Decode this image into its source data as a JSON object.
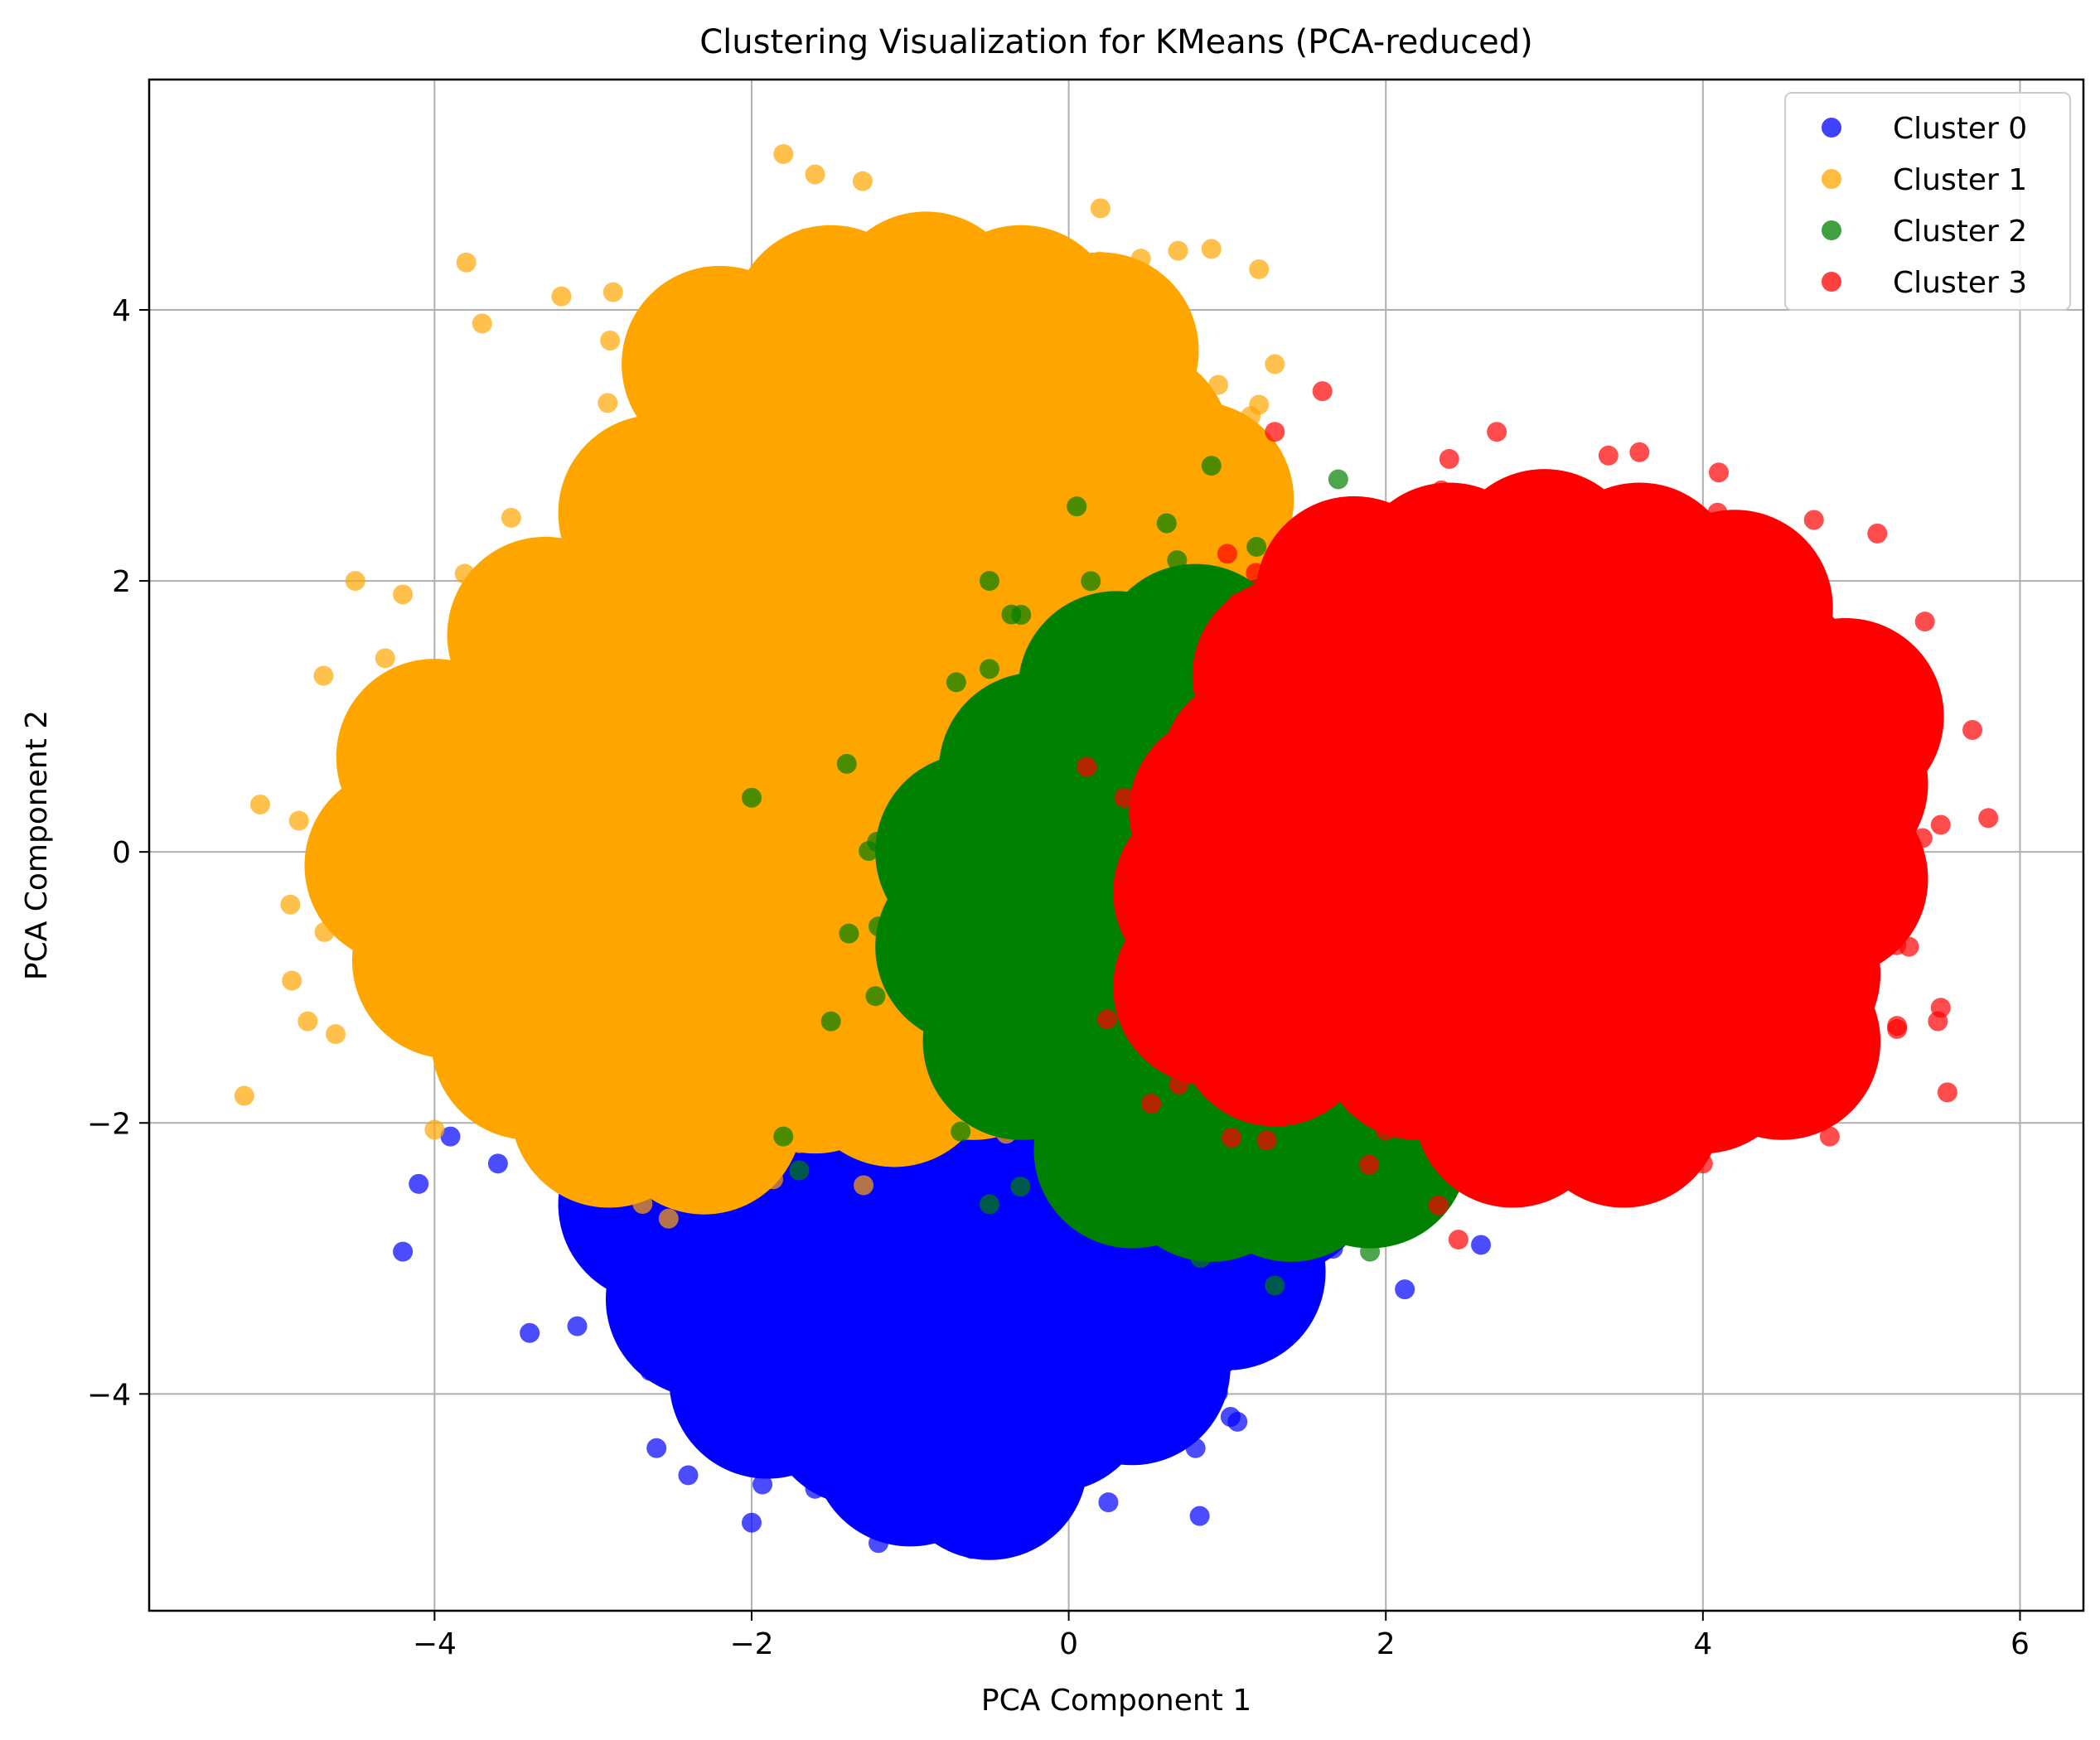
{
  "chart_data": {
    "type": "scatter",
    "title": "Clustering Visualization for KMeans (PCA-reduced)",
    "xlabel": "PCA Component 1",
    "ylabel": "PCA Component 2",
    "xlim": [
      -5.8,
      6.4
    ],
    "ylim": [
      -5.6,
      5.7
    ],
    "xticks": [
      -4,
      -2,
      0,
      2,
      4,
      6
    ],
    "yticks": [
      -4,
      -2,
      0,
      2,
      4
    ],
    "xtick_labels": [
      "−4",
      "−2",
      "0",
      "2",
      "4",
      "6"
    ],
    "ytick_labels": [
      "−4",
      "−2",
      "0",
      "2",
      "4"
    ],
    "grid": true,
    "legend_position": "top-right",
    "series": [
      {
        "name": "Cluster 0",
        "color": "#0000ff",
        "core_points": [
          [
            -2.2,
            -2.0
          ],
          [
            -1.6,
            -2.2
          ],
          [
            -1.0,
            -2.3
          ],
          [
            -0.4,
            -2.2
          ],
          [
            0.2,
            -2.1
          ],
          [
            0.7,
            -2.0
          ],
          [
            -2.6,
            -2.6
          ],
          [
            -2.0,
            -2.8
          ],
          [
            -1.4,
            -2.9
          ],
          [
            -0.8,
            -2.9
          ],
          [
            -0.2,
            -2.9
          ],
          [
            0.4,
            -2.8
          ],
          [
            0.9,
            -2.6
          ],
          [
            1.3,
            -2.4
          ],
          [
            -2.3,
            -3.3
          ],
          [
            -1.7,
            -3.4
          ],
          [
            -1.1,
            -3.5
          ],
          [
            -0.5,
            -3.5
          ],
          [
            0.1,
            -3.4
          ],
          [
            0.6,
            -3.3
          ],
          [
            1.0,
            -3.1
          ],
          [
            -1.9,
            -3.9
          ],
          [
            -1.3,
            -4.1
          ],
          [
            -0.7,
            -4.1
          ],
          [
            -0.1,
            -4.0
          ],
          [
            0.4,
            -3.8
          ],
          [
            -1.0,
            -4.4
          ],
          [
            -0.5,
            -4.5
          ]
        ],
        "outliers": [
          [
            -4.2,
            -2.95
          ],
          [
            -4.1,
            -2.45
          ],
          [
            -3.4,
            -3.55
          ],
          [
            -3.1,
            -3.5
          ],
          [
            -2.4,
            -4.6
          ],
          [
            -1.2,
            -5.1
          ],
          [
            -0.3,
            -5.0
          ],
          [
            -2.0,
            -4.95
          ],
          [
            0.25,
            -4.8
          ],
          [
            2.6,
            -2.9
          ],
          [
            1.2,
            -3.4
          ],
          [
            0.8,
            -4.4
          ],
          [
            -1.6,
            -4.7
          ],
          [
            -2.6,
            -4.4
          ],
          [
            -3.6,
            -2.3
          ],
          [
            -3.9,
            -2.1
          ]
        ]
      },
      {
        "name": "Cluster 1",
        "color": "#ffa500",
        "core_points": [
          [
            -1.5,
            3.9
          ],
          [
            -0.9,
            4.0
          ],
          [
            -0.3,
            3.9
          ],
          [
            0.2,
            3.7
          ],
          [
            -2.2,
            3.6
          ],
          [
            -2.0,
            3.0
          ],
          [
            -1.4,
            3.2
          ],
          [
            -0.8,
            3.3
          ],
          [
            -0.2,
            3.2
          ],
          [
            0.4,
            3.0
          ],
          [
            0.8,
            2.6
          ],
          [
            -2.6,
            2.5
          ],
          [
            -2.0,
            2.4
          ],
          [
            -1.4,
            2.5
          ],
          [
            -0.8,
            2.5
          ],
          [
            -0.2,
            2.3
          ],
          [
            0.4,
            2.0
          ],
          [
            0.8,
            1.6
          ],
          [
            -3.3,
            1.6
          ],
          [
            -2.7,
            1.7
          ],
          [
            -2.1,
            1.7
          ],
          [
            -1.5,
            1.7
          ],
          [
            -0.9,
            1.6
          ],
          [
            -0.4,
            1.3
          ],
          [
            -4.0,
            0.7
          ],
          [
            -3.4,
            0.9
          ],
          [
            -2.8,
            0.9
          ],
          [
            -2.2,
            0.9
          ],
          [
            -1.6,
            0.9
          ],
          [
            -1.0,
            0.7
          ],
          [
            -0.6,
            0.4
          ],
          [
            -4.2,
            -0.1
          ],
          [
            -3.6,
            0.1
          ],
          [
            -3.0,
            0.1
          ],
          [
            -2.4,
            0.1
          ],
          [
            -1.8,
            0.1
          ],
          [
            -1.2,
            -0.1
          ],
          [
            -0.8,
            -0.4
          ],
          [
            -3.9,
            -0.8
          ],
          [
            -3.3,
            -0.7
          ],
          [
            -2.7,
            -0.7
          ],
          [
            -2.1,
            -0.7
          ],
          [
            -1.5,
            -0.8
          ],
          [
            -1.0,
            -1.0
          ],
          [
            -3.4,
            -1.4
          ],
          [
            -2.8,
            -1.5
          ],
          [
            -2.2,
            -1.5
          ],
          [
            -1.6,
            -1.5
          ],
          [
            -1.1,
            -1.6
          ],
          [
            -2.9,
            -1.9
          ],
          [
            -2.3,
            -1.95
          ],
          [
            -0.6,
            -1.4
          ]
        ],
        "outliers": [
          [
            -5.2,
            -1.8
          ],
          [
            -5.1,
            0.35
          ],
          [
            -4.9,
            -0.95
          ],
          [
            -4.8,
            -1.25
          ],
          [
            -4.7,
            1.3
          ],
          [
            -4.5,
            2.0
          ],
          [
            -4.2,
            1.9
          ],
          [
            -3.8,
            4.35
          ],
          [
            -3.7,
            3.9
          ],
          [
            -3.2,
            4.1
          ],
          [
            -1.8,
            5.15
          ],
          [
            -1.6,
            5.0
          ],
          [
            -1.3,
            4.95
          ],
          [
            0.2,
            4.75
          ],
          [
            0.9,
            4.45
          ],
          [
            1.2,
            4.3
          ],
          [
            1.3,
            3.6
          ],
          [
            1.2,
            3.3
          ],
          [
            -3.3,
            -2.2
          ],
          [
            -2.5,
            -2.15
          ],
          [
            -1.7,
            -2.15
          ],
          [
            -4.0,
            -2.05
          ],
          [
            -0.8,
            -1.65
          ]
        ]
      },
      {
        "name": "Cluster 2",
        "color": "#008000",
        "core_points": [
          [
            0.3,
            1.2
          ],
          [
            0.8,
            1.4
          ],
          [
            1.3,
            1.3
          ],
          [
            -0.2,
            0.6
          ],
          [
            0.3,
            0.7
          ],
          [
            0.8,
            0.7
          ],
          [
            1.3,
            0.6
          ],
          [
            1.7,
            0.5
          ],
          [
            -0.6,
            0.0
          ],
          [
            -0.1,
            0.0
          ],
          [
            0.4,
            0.0
          ],
          [
            0.9,
            -0.1
          ],
          [
            1.4,
            -0.2
          ],
          [
            1.8,
            -0.3
          ],
          [
            -0.6,
            -0.7
          ],
          [
            -0.1,
            -0.7
          ],
          [
            0.4,
            -0.8
          ],
          [
            0.9,
            -0.9
          ],
          [
            1.4,
            -1.0
          ],
          [
            1.9,
            -1.1
          ],
          [
            -0.3,
            -1.4
          ],
          [
            0.2,
            -1.5
          ],
          [
            0.7,
            -1.6
          ],
          [
            1.2,
            -1.7
          ],
          [
            1.7,
            -1.8
          ],
          [
            2.2,
            -1.7
          ],
          [
            0.4,
            -2.2
          ],
          [
            0.9,
            -2.3
          ],
          [
            1.4,
            -2.3
          ],
          [
            1.9,
            -2.2
          ]
        ],
        "outliers": [
          [
            -2.0,
            0.4
          ],
          [
            -1.4,
            0.65
          ],
          [
            -0.5,
            2.0
          ],
          [
            0.05,
            2.55
          ],
          [
            0.9,
            2.85
          ],
          [
            1.7,
            2.75
          ],
          [
            2.3,
            2.5
          ],
          [
            1.9,
            -2.95
          ],
          [
            2.3,
            -2.55
          ],
          [
            1.3,
            -3.2
          ],
          [
            -0.5,
            -2.6
          ],
          [
            -1.7,
            -2.35
          ],
          [
            -1.8,
            -2.1
          ],
          [
            -1.2,
            -0.55
          ],
          [
            -1.5,
            -1.25
          ],
          [
            -0.3,
            1.75
          ],
          [
            -0.5,
            1.35
          ]
        ]
      },
      {
        "name": "Cluster 3",
        "color": "#ff0000",
        "core_points": [
          [
            1.8,
            1.9
          ],
          [
            2.4,
            2.0
          ],
          [
            3.0,
            2.1
          ],
          [
            3.6,
            2.0
          ],
          [
            4.2,
            1.8
          ],
          [
            1.4,
            1.3
          ],
          [
            2.0,
            1.4
          ],
          [
            2.6,
            1.5
          ],
          [
            3.2,
            1.5
          ],
          [
            3.8,
            1.4
          ],
          [
            4.4,
            1.2
          ],
          [
            4.9,
            1.0
          ],
          [
            1.2,
            0.6
          ],
          [
            1.8,
            0.7
          ],
          [
            2.4,
            0.8
          ],
          [
            3.0,
            0.8
          ],
          [
            3.6,
            0.8
          ],
          [
            4.2,
            0.7
          ],
          [
            4.8,
            0.5
          ],
          [
            1.2,
            -0.1
          ],
          [
            1.8,
            0.0
          ],
          [
            2.4,
            0.0
          ],
          [
            3.0,
            0.1
          ],
          [
            3.6,
            0.0
          ],
          [
            4.2,
            -0.1
          ],
          [
            4.8,
            -0.2
          ],
          [
            1.5,
            -0.8
          ],
          [
            2.1,
            -0.7
          ],
          [
            2.7,
            -0.7
          ],
          [
            3.3,
            -0.7
          ],
          [
            3.9,
            -0.8
          ],
          [
            4.5,
            -0.9
          ],
          [
            2.2,
            -1.4
          ],
          [
            2.8,
            -1.4
          ],
          [
            3.4,
            -1.5
          ],
          [
            4.0,
            -1.5
          ],
          [
            4.5,
            -1.4
          ],
          [
            2.8,
            -1.9
          ],
          [
            3.5,
            -1.9
          ],
          [
            1.3,
            -1.3
          ],
          [
            0.9,
            -1.0
          ],
          [
            0.9,
            -0.3
          ],
          [
            1.0,
            0.3
          ]
        ],
        "outliers": [
          [
            1.3,
            3.1
          ],
          [
            1.6,
            3.4
          ],
          [
            2.4,
            2.9
          ],
          [
            2.7,
            3.1
          ],
          [
            3.6,
            2.95
          ],
          [
            4.1,
            2.8
          ],
          [
            4.7,
            2.45
          ],
          [
            5.1,
            2.35
          ],
          [
            5.4,
            1.7
          ],
          [
            5.7,
            0.9
          ],
          [
            5.8,
            0.25
          ],
          [
            5.5,
            0.2
          ],
          [
            5.3,
            -0.7
          ],
          [
            5.5,
            -1.15
          ],
          [
            5.0,
            -1.0
          ],
          [
            4.7,
            -1.5
          ],
          [
            4.8,
            -2.1
          ],
          [
            4.0,
            -2.3
          ],
          [
            3.5,
            -2.3
          ],
          [
            2.9,
            -2.05
          ],
          [
            2.5,
            -2.15
          ],
          [
            0.35,
            0.4
          ],
          [
            0.5,
            -0.5
          ],
          [
            1.1,
            -1.4
          ],
          [
            1.0,
            2.2
          ]
        ]
      }
    ]
  }
}
